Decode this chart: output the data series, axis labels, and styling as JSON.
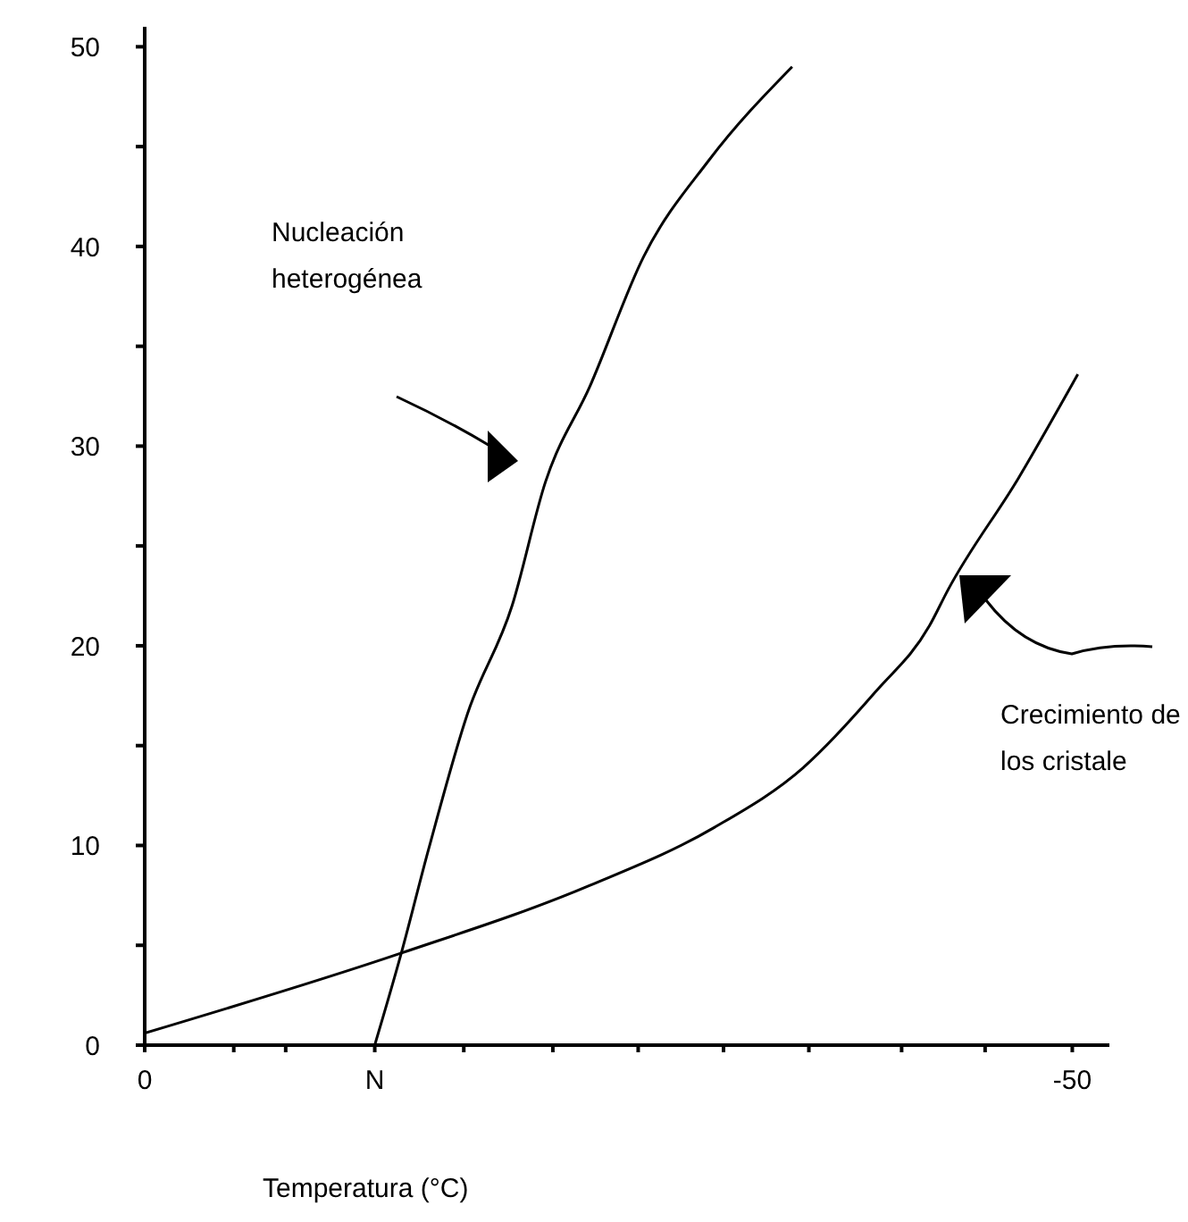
{
  "chart_data": {
    "type": "line",
    "xlabel": "Temperatura (°C)",
    "xlim": [
      0,
      -52
    ],
    "xticks": [
      0,
      {
        "value": -4.8,
        "label": null
      },
      {
        "value": -7.6,
        "label": null
      },
      {
        "value": -12.4,
        "label": "N"
      },
      {
        "value": -17.2,
        "label": null
      },
      {
        "value": -22,
        "label": null
      },
      {
        "value": -26.6,
        "label": null
      },
      {
        "value": -31.2,
        "label": null
      },
      {
        "value": -35.8,
        "label": null
      },
      {
        "value": -40.8,
        "label": null
      },
      {
        "value": -45.3,
        "label": null
      },
      -50
    ],
    "ylim": [
      0,
      51
    ],
    "yticks": [
      0,
      {
        "value": 5,
        "label": null
      },
      10,
      {
        "value": 15,
        "label": null
      },
      20,
      {
        "value": 25,
        "label": null
      },
      30,
      {
        "value": 35,
        "label": null
      },
      40,
      {
        "value": 45,
        "label": null
      },
      50
    ],
    "annotations": [
      "Nucleación heterogénea",
      "Crecimiento de los cristale"
    ],
    "grid": false,
    "legend": false,
    "marker": "none",
    "line_style": "solid",
    "series": [
      {
        "color": "#000000",
        "x": [
          -12.4,
          -13.8,
          -15.3,
          -17.4,
          -19.8,
          -21.6,
          -24,
          -26.9,
          -30.4,
          -34.9
        ],
        "values": [
          0,
          4.5,
          9.8,
          16.6,
          22,
          28.2,
          33,
          39.5,
          44.3,
          49
        ]
      },
      {
        "color": "#000000",
        "x": [
          0,
          -13.8,
          -24,
          -30.7,
          -35.5,
          -39.4,
          -42.3,
          -43.3,
          -47.1,
          -50.3
        ],
        "values": [
          0.6,
          4.6,
          8,
          10.9,
          13.9,
          17.7,
          21,
          22.8,
          28.4,
          33.6
        ]
      }
    ]
  }
}
